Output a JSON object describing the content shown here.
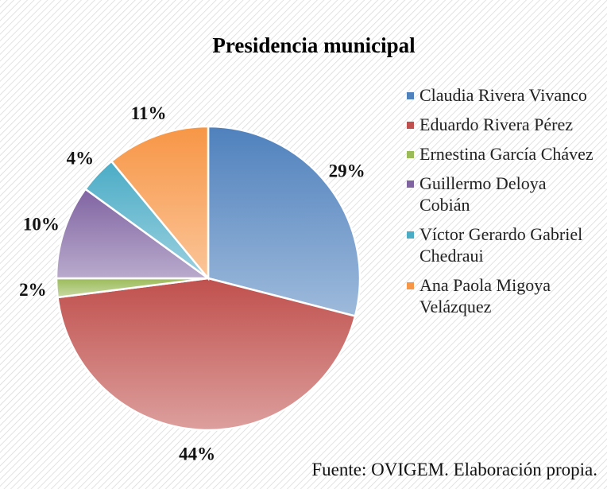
{
  "chart_data": {
    "type": "pie",
    "title": "Presidencia municipal",
    "categories": [
      "Claudia Rivera Vivanco",
      "Eduardo Rivera Pérez",
      "Ernestina García Chávez",
      "Guillermo Deloya Cobián",
      "Víctor Gerardo Gabriel Chedraui",
      "Ana Paola Migoya Velázquez"
    ],
    "values": [
      29,
      44,
      2,
      10,
      4,
      11
    ],
    "value_labels": [
      "29%",
      "44%",
      "2%",
      "10%",
      "4%",
      "11%"
    ],
    "colors": [
      "#4f81bd",
      "#c0504d",
      "#9bbb59",
      "#8064a2",
      "#4bacc6",
      "#f79646"
    ],
    "legend": "right",
    "source": "Fuente: OVIGEM. Elaboración propia."
  }
}
